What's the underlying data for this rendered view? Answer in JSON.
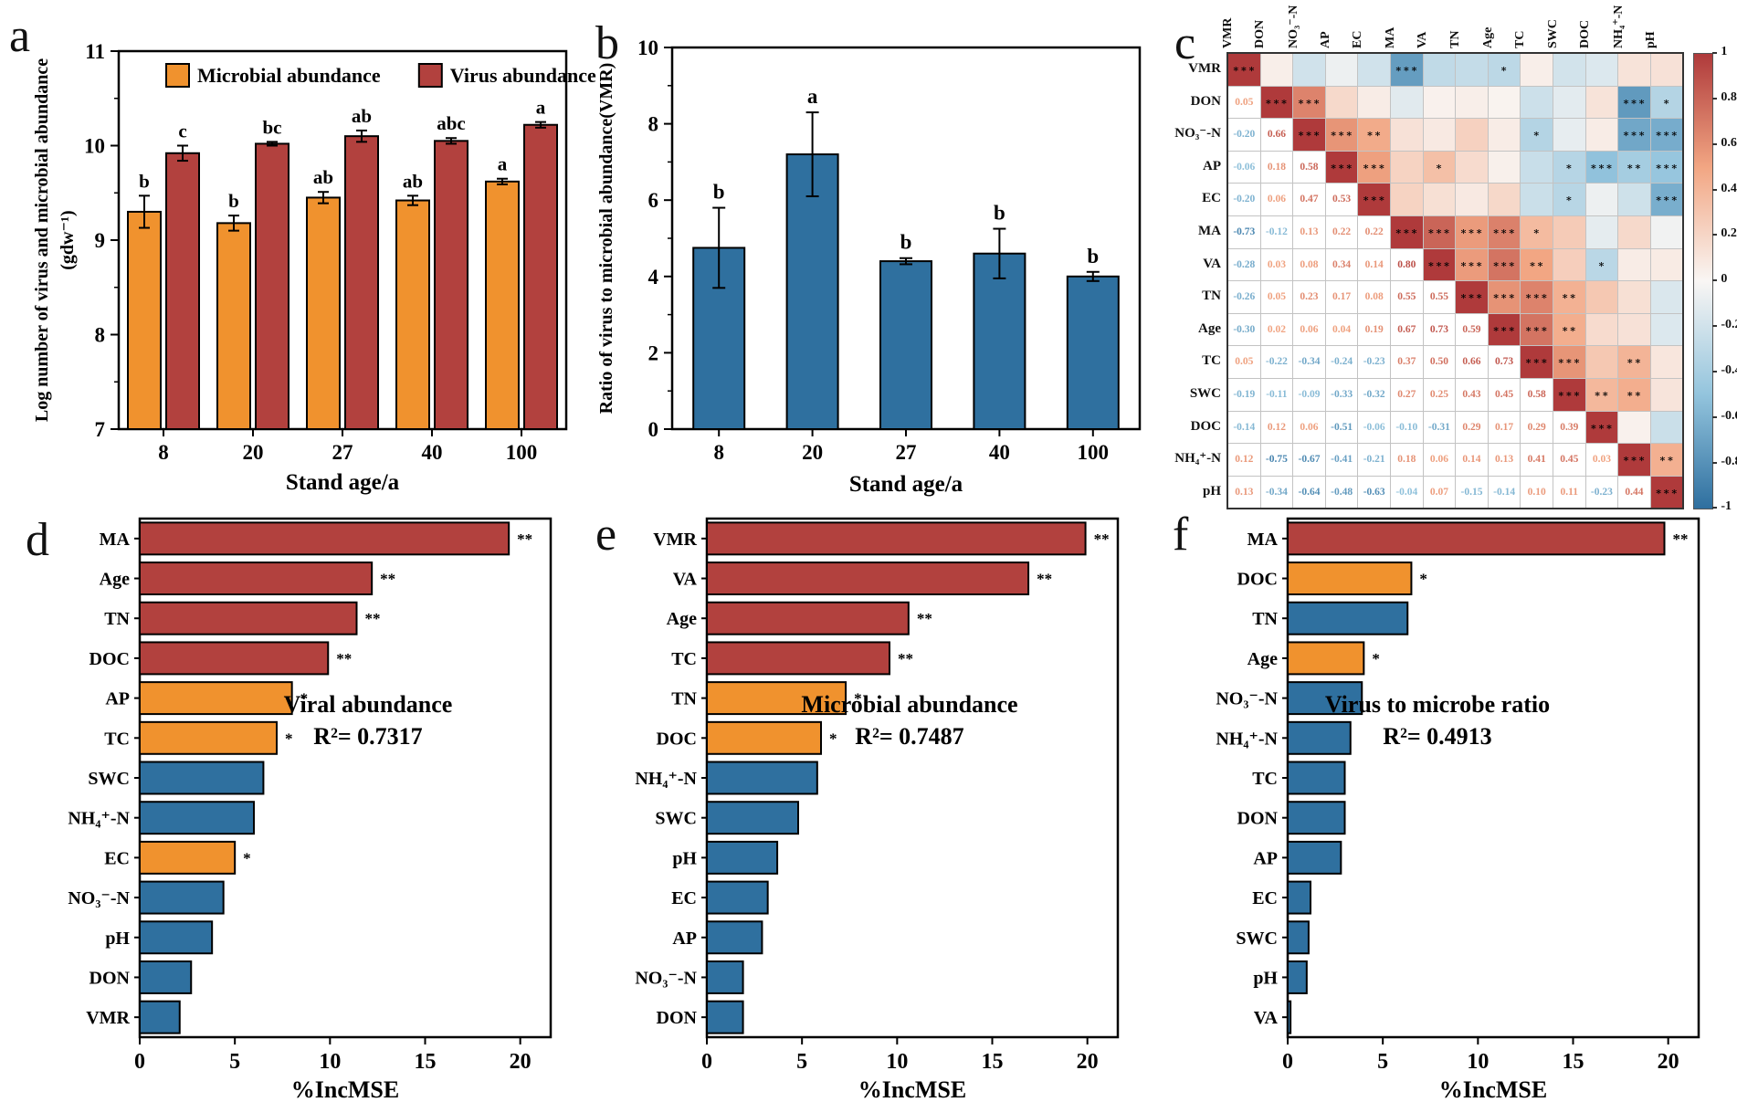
{
  "letters": {
    "a": "a",
    "b": "b",
    "c": "c",
    "d": "d",
    "e": "e",
    "f": "f"
  },
  "colors": {
    "orange": "#F0922E",
    "red": "#B2413E",
    "blue": "#2F709F",
    "axis": "#000000",
    "heat_pos": "#AF3A3B",
    "heat_mid": "#F9F6F4",
    "heat_neg": "#2E6F9F",
    "heat_pos_soft": "#F2A683",
    "heat_neg_soft": "#93C4DD"
  },
  "chart_data": [
    {
      "panel": "a",
      "type": "bar",
      "categories": [
        "8",
        "20",
        "27",
        "40",
        "100"
      ],
      "xlabel": "Stand age/a",
      "ylabel_line1": "Log number of virus and microbial abundance",
      "ylabel_line2": "(gdw⁻¹)",
      "ylim": [
        7,
        11
      ],
      "yticks": [
        7,
        8,
        9,
        10,
        11
      ],
      "series": [
        {
          "name": "Microbial abundance",
          "color": "orange",
          "values": [
            9.3,
            9.18,
            9.45,
            9.42,
            9.62
          ],
          "errors": [
            0.17,
            0.08,
            0.06,
            0.05,
            0.03
          ],
          "letters": [
            "b",
            "b",
            "ab",
            "ab",
            "a"
          ]
        },
        {
          "name": "Virus abundance",
          "color": "red",
          "values": [
            9.92,
            10.02,
            10.1,
            10.05,
            10.22
          ],
          "errors": [
            0.08,
            0.02,
            0.06,
            0.03,
            0.03
          ],
          "letters": [
            "c",
            "bc",
            "ab",
            "abc",
            "a"
          ]
        }
      ],
      "legend": [
        "Microbial abundance",
        "Virus abundance"
      ]
    },
    {
      "panel": "b",
      "type": "bar",
      "categories": [
        "8",
        "20",
        "27",
        "40",
        "100"
      ],
      "xlabel": "Stand age/a",
      "ylabel": "Ratio of virus to microbial abundance(VMR)",
      "ylim": [
        0,
        10
      ],
      "yticks": [
        0,
        2,
        4,
        6,
        8,
        10
      ],
      "values": [
        4.75,
        7.2,
        4.4,
        4.6,
        4.0
      ],
      "errors": [
        1.05,
        1.1,
        0.08,
        0.65,
        0.12
      ],
      "letters": [
        "b",
        "a",
        "b",
        "b",
        "b"
      ],
      "color": "blue"
    },
    {
      "panel": "c",
      "type": "heatmap",
      "variables": [
        "VMR",
        "DON",
        "NO₃⁻-N",
        "AP",
        "EC",
        "MA",
        "VA",
        "TN",
        "Age",
        "TC",
        "SWC",
        "DOC",
        "NH₄⁺-N",
        "pH"
      ],
      "matrix": [
        [
          1.0,
          0.05,
          -0.2,
          -0.06,
          -0.2,
          -0.73,
          -0.28,
          -0.26,
          -0.3,
          0.05,
          -0.19,
          -0.14,
          0.12,
          0.13
        ],
        [
          0.05,
          1.0,
          0.66,
          0.18,
          0.06,
          -0.12,
          0.03,
          0.05,
          0.02,
          -0.22,
          -0.11,
          0.12,
          -0.75,
          -0.34
        ],
        [
          -0.2,
          0.66,
          1.0,
          0.58,
          0.47,
          0.13,
          0.08,
          0.23,
          0.06,
          -0.34,
          -0.09,
          0.06,
          -0.67,
          -0.64
        ],
        [
          -0.06,
          0.18,
          0.58,
          1.0,
          0.53,
          0.22,
          0.34,
          0.17,
          0.04,
          -0.24,
          -0.33,
          -0.51,
          -0.41,
          -0.48
        ],
        [
          -0.2,
          0.06,
          0.47,
          0.53,
          1.0,
          0.22,
          0.14,
          0.08,
          0.19,
          -0.23,
          -0.32,
          -0.06,
          -0.21,
          -0.63
        ],
        [
          -0.73,
          -0.12,
          0.13,
          0.22,
          0.22,
          1.0,
          0.8,
          0.55,
          0.67,
          0.37,
          0.27,
          -0.1,
          0.18,
          -0.04
        ],
        [
          -0.28,
          0.03,
          0.08,
          0.34,
          0.14,
          0.8,
          1.0,
          0.55,
          0.73,
          0.5,
          0.25,
          -0.31,
          0.06,
          0.07
        ],
        [
          -0.26,
          0.05,
          0.23,
          0.17,
          0.08,
          0.55,
          0.55,
          1.0,
          0.59,
          0.66,
          0.43,
          0.29,
          0.14,
          -0.15
        ],
        [
          -0.3,
          0.02,
          0.06,
          0.04,
          0.19,
          0.67,
          0.73,
          0.59,
          1.0,
          0.73,
          0.45,
          0.17,
          0.13,
          -0.14
        ],
        [
          0.05,
          -0.22,
          -0.34,
          -0.24,
          -0.23,
          0.37,
          0.5,
          0.66,
          0.73,
          1.0,
          0.58,
          0.29,
          0.41,
          0.1
        ],
        [
          -0.19,
          -0.11,
          -0.09,
          -0.33,
          -0.32,
          0.27,
          0.25,
          0.43,
          0.45,
          0.58,
          1.0,
          0.39,
          0.45,
          0.11
        ],
        [
          -0.14,
          0.12,
          0.06,
          -0.51,
          -0.06,
          -0.1,
          -0.31,
          0.29,
          0.17,
          0.29,
          0.39,
          1.0,
          0.03,
          -0.23
        ],
        [
          0.12,
          -0.75,
          -0.67,
          -0.41,
          -0.21,
          0.18,
          0.06,
          0.14,
          0.13,
          0.41,
          0.45,
          0.03,
          1.0,
          0.44
        ],
        [
          0.13,
          -0.34,
          -0.64,
          -0.48,
          -0.63,
          -0.04,
          0.07,
          -0.15,
          -0.14,
          0.1,
          0.11,
          -0.23,
          0.44,
          1.0
        ]
      ],
      "stars": {
        "0,5": "***",
        "0,8": "*",
        "1,2": "***",
        "1,12": "***",
        "1,13": "*",
        "2,3": "***",
        "2,4": "**",
        "2,9": "*",
        "2,12": "***",
        "2,13": "***",
        "3,4": "***",
        "3,6": "*",
        "3,10": "*",
        "3,11": "***",
        "3,12": "**",
        "3,13": "***",
        "4,10": "*",
        "4,13": "***",
        "5,6": "***",
        "5,7": "***",
        "5,8": "***",
        "5,9": "*",
        "6,7": "***",
        "6,8": "***",
        "6,9": "**",
        "6,11": "*",
        "7,8": "***",
        "7,9": "***",
        "7,10": "**",
        "8,9": "***",
        "8,10": "**",
        "9,10": "***",
        "9,12": "**",
        "10,11": "**",
        "10,12": "**",
        "12,13": "**"
      },
      "diagonal_stars": "***",
      "colorbar_ticks": [
        "1",
        "0.8",
        "0.6",
        "0.4",
        "0.2",
        "0",
        "-0.2",
        "-0.4",
        "-0.6",
        "-0.8",
        "-1"
      ]
    },
    {
      "panel": "d",
      "type": "hbar",
      "xlabel": "%IncMSE",
      "xticks": [
        0,
        5,
        10,
        15,
        20
      ],
      "xlim": [
        0,
        21.6
      ],
      "annotation_line1": "Viral abundance",
      "annotation_line2": "R²= 0.7317",
      "items": [
        {
          "label": "MA",
          "value": 19.4,
          "color": "red",
          "stars": "**"
        },
        {
          "label": "Age",
          "value": 12.2,
          "color": "red",
          "stars": "**"
        },
        {
          "label": "TN",
          "value": 11.4,
          "color": "red",
          "stars": "**"
        },
        {
          "label": "DOC",
          "value": 9.9,
          "color": "red",
          "stars": "**"
        },
        {
          "label": "AP",
          "value": 8.0,
          "color": "orange",
          "stars": "*"
        },
        {
          "label": "TC",
          "value": 7.2,
          "color": "orange",
          "stars": "*"
        },
        {
          "label": "SWC",
          "value": 6.5,
          "color": "blue",
          "stars": ""
        },
        {
          "label": "NH₄⁺-N",
          "value": 6.0,
          "color": "blue",
          "stars": ""
        },
        {
          "label": "EC",
          "value": 5.0,
          "color": "orange",
          "stars": "*"
        },
        {
          "label": "NO₃⁻-N",
          "value": 4.4,
          "color": "blue",
          "stars": ""
        },
        {
          "label": "pH",
          "value": 3.8,
          "color": "blue",
          "stars": ""
        },
        {
          "label": "DON",
          "value": 2.7,
          "color": "blue",
          "stars": ""
        },
        {
          "label": "VMR",
          "value": 2.1,
          "color": "blue",
          "stars": ""
        }
      ]
    },
    {
      "panel": "e",
      "type": "hbar",
      "xlabel": "%IncMSE",
      "xticks": [
        0,
        5,
        10,
        15,
        20
      ],
      "xlim": [
        0,
        21.6
      ],
      "annotation_line1": "Microbial abundance",
      "annotation_line2": "R²= 0.7487",
      "items": [
        {
          "label": "VMR",
          "value": 19.9,
          "color": "red",
          "stars": "**"
        },
        {
          "label": "VA",
          "value": 16.9,
          "color": "red",
          "stars": "**"
        },
        {
          "label": "Age",
          "value": 10.6,
          "color": "red",
          "stars": "**"
        },
        {
          "label": "TC",
          "value": 9.6,
          "color": "red",
          "stars": "**"
        },
        {
          "label": "TN",
          "value": 7.3,
          "color": "orange",
          "stars": "*"
        },
        {
          "label": "DOC",
          "value": 6.0,
          "color": "orange",
          "stars": "*"
        },
        {
          "label": "NH₄⁺-N",
          "value": 5.8,
          "color": "blue",
          "stars": ""
        },
        {
          "label": "SWC",
          "value": 4.8,
          "color": "blue",
          "stars": ""
        },
        {
          "label": "pH",
          "value": 3.7,
          "color": "blue",
          "stars": ""
        },
        {
          "label": "EC",
          "value": 3.2,
          "color": "blue",
          "stars": ""
        },
        {
          "label": "AP",
          "value": 2.9,
          "color": "blue",
          "stars": ""
        },
        {
          "label": "NO₃⁻-N",
          "value": 1.9,
          "color": "blue",
          "stars": ""
        },
        {
          "label": "DON",
          "value": 1.9,
          "color": "blue",
          "stars": ""
        }
      ]
    },
    {
      "panel": "f",
      "type": "hbar",
      "xlabel": "%IncMSE",
      "xticks": [
        0,
        5,
        10,
        15,
        20
      ],
      "xlim": [
        0,
        21.6
      ],
      "annotation_line1": "Virus to microbe ratio",
      "annotation_line2": "R²= 0.4913",
      "items": [
        {
          "label": "MA",
          "value": 19.8,
          "color": "red",
          "stars": "**"
        },
        {
          "label": "DOC",
          "value": 6.5,
          "color": "orange",
          "stars": "*"
        },
        {
          "label": "TN",
          "value": 6.3,
          "color": "blue",
          "stars": ""
        },
        {
          "label": "Age",
          "value": 4.0,
          "color": "orange",
          "stars": "*"
        },
        {
          "label": "NO₃⁻-N",
          "value": 3.9,
          "color": "blue",
          "stars": ""
        },
        {
          "label": "NH₄⁺-N",
          "value": 3.3,
          "color": "blue",
          "stars": ""
        },
        {
          "label": "TC",
          "value": 3.0,
          "color": "blue",
          "stars": ""
        },
        {
          "label": "DON",
          "value": 3.0,
          "color": "blue",
          "stars": ""
        },
        {
          "label": "AP",
          "value": 2.8,
          "color": "blue",
          "stars": ""
        },
        {
          "label": "EC",
          "value": 1.2,
          "color": "blue",
          "stars": ""
        },
        {
          "label": "SWC",
          "value": 1.1,
          "color": "blue",
          "stars": ""
        },
        {
          "label": "pH",
          "value": 1.0,
          "color": "blue",
          "stars": ""
        },
        {
          "label": "VA",
          "value": 0.15,
          "color": "blue",
          "stars": ""
        }
      ]
    }
  ]
}
